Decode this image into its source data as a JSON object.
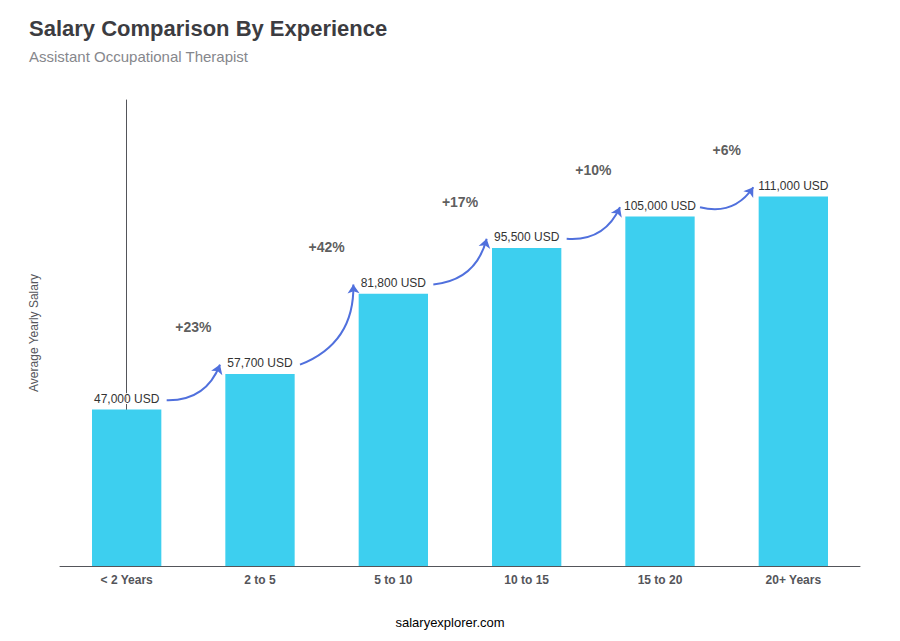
{
  "chart_data": {
    "type": "bar",
    "title": "Salary Comparison By Experience",
    "subtitle": "Assistant Occupational Therapist",
    "categories": [
      "< 2 Years",
      "2 to 5",
      "5 to 10",
      "10 to 15",
      "15 to 20",
      "20+ Years"
    ],
    "values": [
      47000,
      57700,
      81800,
      95500,
      105000,
      111000
    ],
    "value_labels": [
      "47,000 USD",
      "57,700 USD",
      "81,800 USD",
      "95,500 USD",
      "105,000 USD",
      "111,000 USD"
    ],
    "data_labels": true,
    "color": "#3dcfef",
    "ylabel": "Average Yearly Salary",
    "ylim": [
      0,
      140000
    ],
    "tick_labels": "x",
    "grid": false,
    "annotations": [
      "+23%",
      "+42%",
      "+17%",
      "+10%",
      "+6%"
    ],
    "footer": "salaryexplorer.com"
  }
}
